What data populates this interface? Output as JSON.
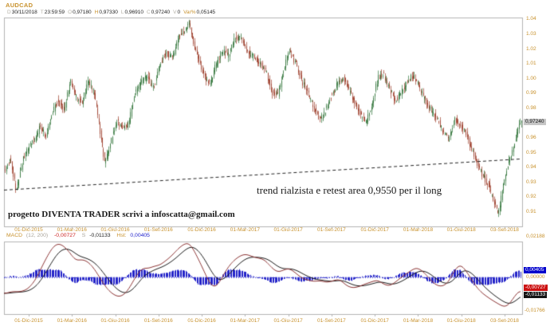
{
  "header": {
    "symbol": "AUDCAD",
    "fields": [
      {
        "label": "D",
        "value": "30/11/2018",
        "hl": false
      },
      {
        "label": "T",
        "value": "23:59:59",
        "hl": false
      },
      {
        "label": "O",
        "value": "0,97180",
        "hl": false
      },
      {
        "label": "H",
        "value": "0,97330",
        "hl": true
      },
      {
        "label": "L",
        "value": "0,96910",
        "hl": false
      },
      {
        "label": "C",
        "value": "0,97240",
        "hl": false
      },
      {
        "label": "V",
        "value": "0",
        "hl": false
      },
      {
        "label": "Var%",
        "value": "0,05145",
        "hl": true
      }
    ]
  },
  "annotations": {
    "trend_text": "trend rialzista e retest area 0,9550 per il long",
    "promo_text": "progetto DIVENTA TRADER scrivi a infoscatta@gmail.com"
  },
  "price_axis": {
    "labels": [
      "1.04",
      "1.03",
      "1.02",
      "1.01",
      "1.00",
      "0.99",
      "0.98",
      "0.97",
      "0.96",
      "0.95",
      "0.94",
      "0.93",
      "0.92",
      "0.91"
    ],
    "current_price_tag": "0,97240"
  },
  "date_axis": {
    "labels": [
      "01-Dic-2015",
      "01-Mar-2016",
      "01-Giu-2016",
      "01-Set-2016",
      "01-Dic-2016",
      "01-Mar-2017",
      "01-Giu-2017",
      "01-Set-2017",
      "01-Dic-2017",
      "01-Mar-2018",
      "01-Giu-2018",
      "03-Set-2018"
    ]
  },
  "macd_legend": {
    "name": "MACD",
    "params": "(12, 200)",
    "macd_value": "-0,00727",
    "s_label": "S",
    "signal_value": "-0,01133",
    "hist_label": "Hst:",
    "hist_value": "0,00405"
  },
  "macd_axis": {
    "top": "0,02188",
    "hist_tag": "0,00405",
    "zero": "0,00000",
    "macd_tag": "-0,00727",
    "signal_tag": "-0,01133",
    "bottom": "-0,01766"
  },
  "colors": {
    "accent_orange": "#c8922e",
    "candle_up": "#3e7d46",
    "candle_down": "#a34a38",
    "macd_line": "#8b3333",
    "signal_line": "#1a1a1a",
    "histogram": "#2323c8",
    "zero_line": "#4444cc",
    "border": "#b3b3b3",
    "trendline": "#222222",
    "price_tag_bg": "#c6c6c6",
    "tag_blue_bg": "#0000cc",
    "tag_red_bg": "#cc1111",
    "tag_black_bg": "#141414"
  },
  "chart_data": [
    {
      "type": "candlestick",
      "symbol": "AUDCAD",
      "period_note": "daily candles, Dec 2015 - Nov 2018",
      "ylim": [
        0.9,
        1.041
      ],
      "x_axis_dates": [
        "01-Dic-2015",
        "01-Mar-2016",
        "01-Giu-2016",
        "01-Set-2016",
        "01-Dic-2016",
        "01-Mar-2017",
        "01-Giu-2017",
        "01-Set-2017",
        "01-Dic-2017",
        "01-Mar-2018",
        "01-Giu-2018",
        "03-Set-2018"
      ],
      "last_bar": {
        "date": "30/11/2018",
        "open": 0.9718,
        "high": 0.9733,
        "low": 0.9691,
        "close": 0.9724,
        "volume": 0,
        "var_pct": 0.05145
      },
      "trendline": {
        "style": "dashed",
        "x1": 5,
        "p1": 0.9245,
        "x2": 653,
        "p2": 0.9455,
        "note": "trend rialzista e retest area 0,9550 per il long"
      },
      "price_path_anchors": [
        [
          6,
          0.938
        ],
        [
          13,
          0.946
        ],
        [
          20,
          0.9235
        ],
        [
          28,
          0.9445
        ],
        [
          36,
          0.9535
        ],
        [
          44,
          0.959
        ],
        [
          50,
          0.9685
        ],
        [
          57,
          0.9605
        ],
        [
          64,
          0.9755
        ],
        [
          72,
          0.9845
        ],
        [
          80,
          0.979
        ],
        [
          88,
          0.9985
        ],
        [
          95,
          0.9875
        ],
        [
          103,
          0.984
        ],
        [
          110,
          0.9975
        ],
        [
          118,
          0.9895
        ],
        [
          125,
          0.9645
        ],
        [
          131,
          0.9425
        ],
        [
          139,
          0.9575
        ],
        [
          146,
          0.9715
        ],
        [
          153,
          0.9655
        ],
        [
          161,
          0.969
        ],
        [
          168,
          0.9885
        ],
        [
          176,
          0.998
        ],
        [
          184,
          1.0005
        ],
        [
          192,
          0.9935
        ],
        [
          200,
          1.0085
        ],
        [
          208,
          1.0175
        ],
        [
          216,
          1.0135
        ],
        [
          224,
          1.0275
        ],
        [
          231,
          1.0315
        ],
        [
          237,
          1.0375
        ],
        [
          243,
          1.0225
        ],
        [
          250,
          1.0105
        ],
        [
          257,
          1.0005
        ],
        [
          263,
          0.9955
        ],
        [
          270,
          1.0085
        ],
        [
          278,
          1.0185
        ],
        [
          286,
          1.0155
        ],
        [
          294,
          1.0265
        ],
        [
          302,
          1.0285
        ],
        [
          310,
          1.0175
        ],
        [
          318,
          1.0145
        ],
        [
          326,
          1.0095
        ],
        [
          334,
          1.0035
        ],
        [
          341,
          0.9905
        ],
        [
          348,
          0.9885
        ],
        [
          355,
          1.0045
        ],
        [
          362,
          1.0185
        ],
        [
          370,
          1.0105
        ],
        [
          378,
          0.9985
        ],
        [
          386,
          0.9895
        ],
        [
          394,
          0.9795
        ],
        [
          401,
          0.9715
        ],
        [
          408,
          0.9785
        ],
        [
          416,
          0.9895
        ],
        [
          424,
          0.9975
        ],
        [
          431,
          1.0005
        ],
        [
          438,
          0.9915
        ],
        [
          446,
          0.9815
        ],
        [
          453,
          0.9745
        ],
        [
          459,
          0.9705
        ],
        [
          466,
          0.9825
        ],
        [
          474,
          1.0005
        ],
        [
          481,
          1.0025
        ],
        [
          488,
          0.9925
        ],
        [
          496,
          0.9845
        ],
        [
          504,
          0.9915
        ],
        [
          512,
          0.9995
        ],
        [
          519,
          1.0015
        ],
        [
          526,
          0.9935
        ],
        [
          534,
          0.9845
        ],
        [
          542,
          0.9765
        ],
        [
          549,
          0.9725
        ],
        [
          556,
          0.9625
        ],
        [
          563,
          0.9585
        ],
        [
          570,
          0.9725
        ],
        [
          577,
          0.9695
        ],
        [
          584,
          0.9625
        ],
        [
          591,
          0.9525
        ],
        [
          598,
          0.9425
        ],
        [
          605,
          0.9345
        ],
        [
          612,
          0.9285
        ],
        [
          618,
          0.9185
        ],
        [
          625,
          0.9085
        ],
        [
          631,
          0.9285
        ],
        [
          637,
          0.9425
        ],
        [
          643,
          0.9525
        ],
        [
          648,
          0.9625
        ],
        [
          653,
          0.9724
        ]
      ]
    },
    {
      "type": "line+bar",
      "name": "MACD (12, 200)",
      "ylim": [
        -0.0229,
        0.0221
      ],
      "final": {
        "macd": -0.00727,
        "signal": -0.01133,
        "hist": 0.00405
      },
      "macd_anchors": [
        [
          5,
          -0.0105
        ],
        [
          15,
          -0.0088
        ],
        [
          25,
          -0.0092
        ],
        [
          35,
          -0.0075
        ],
        [
          45,
          -0.0015
        ],
        [
          55,
          0.009
        ],
        [
          65,
          0.018
        ],
        [
          72,
          0.0212
        ],
        [
          80,
          0.0195
        ],
        [
          88,
          0.015
        ],
        [
          95,
          0.0098
        ],
        [
          102,
          0.0112
        ],
        [
          110,
          0.0098
        ],
        [
          118,
          0.0055
        ],
        [
          126,
          -0.001
        ],
        [
          134,
          -0.0072
        ],
        [
          142,
          -0.0108
        ],
        [
          150,
          -0.0125
        ],
        [
          158,
          -0.01
        ],
        [
          165,
          -0.0045
        ],
        [
          172,
          0.002
        ],
        [
          180,
          0.0062
        ],
        [
          186,
          0.005
        ],
        [
          192,
          0.0068
        ],
        [
          200,
          0.0072
        ],
        [
          208,
          0.0102
        ],
        [
          216,
          0.0135
        ],
        [
          224,
          0.018
        ],
        [
          232,
          0.021
        ],
        [
          238,
          0.0214
        ],
        [
          245,
          0.015
        ],
        [
          252,
          0.008
        ],
        [
          258,
          0.0015
        ],
        [
          264,
          -0.005
        ],
        [
          270,
          -0.0068
        ],
        [
          276,
          -0.0028
        ],
        [
          284,
          0.0048
        ],
        [
          292,
          0.0098
        ],
        [
          300,
          0.013
        ],
        [
          308,
          0.0145
        ],
        [
          316,
          0.0128
        ],
        [
          324,
          0.0118
        ],
        [
          332,
          0.011
        ],
        [
          340,
          0.0062
        ],
        [
          348,
          0.0028
        ],
        [
          355,
          0.0042
        ],
        [
          362,
          0.0058
        ],
        [
          370,
          0.003
        ],
        [
          378,
          -0.0005
        ],
        [
          386,
          -0.0018
        ],
        [
          394,
          -0.0028
        ],
        [
          402,
          -0.002
        ],
        [
          410,
          -0.0035
        ],
        [
          418,
          -0.0022
        ],
        [
          426,
          -0.001
        ],
        [
          434,
          -0.0052
        ],
        [
          442,
          -0.0068
        ],
        [
          450,
          -0.006
        ],
        [
          458,
          -0.0042
        ],
        [
          466,
          -0.003
        ],
        [
          474,
          -0.0015
        ],
        [
          482,
          -0.0048
        ],
        [
          490,
          -0.0055
        ],
        [
          498,
          -0.0022
        ],
        [
          506,
          0.0008
        ],
        [
          514,
          0.0035
        ],
        [
          522,
          0.0062
        ],
        [
          530,
          0.004
        ],
        [
          538,
          -0.0005
        ],
        [
          546,
          -0.0048
        ],
        [
          554,
          -0.006
        ],
        [
          562,
          -0.0038
        ],
        [
          570,
          0.0042
        ],
        [
          577,
          0.0085
        ],
        [
          584,
          0.0045
        ],
        [
          591,
          -0.001
        ],
        [
          598,
          -0.0065
        ],
        [
          605,
          -0.01
        ],
        [
          612,
          -0.0125
        ],
        [
          619,
          -0.0148
        ],
        [
          626,
          -0.0168
        ],
        [
          633,
          -0.0188
        ],
        [
          638,
          -0.0175
        ],
        [
          644,
          -0.013
        ],
        [
          649,
          -0.0095
        ],
        [
          653,
          -0.0073
        ]
      ]
    }
  ]
}
